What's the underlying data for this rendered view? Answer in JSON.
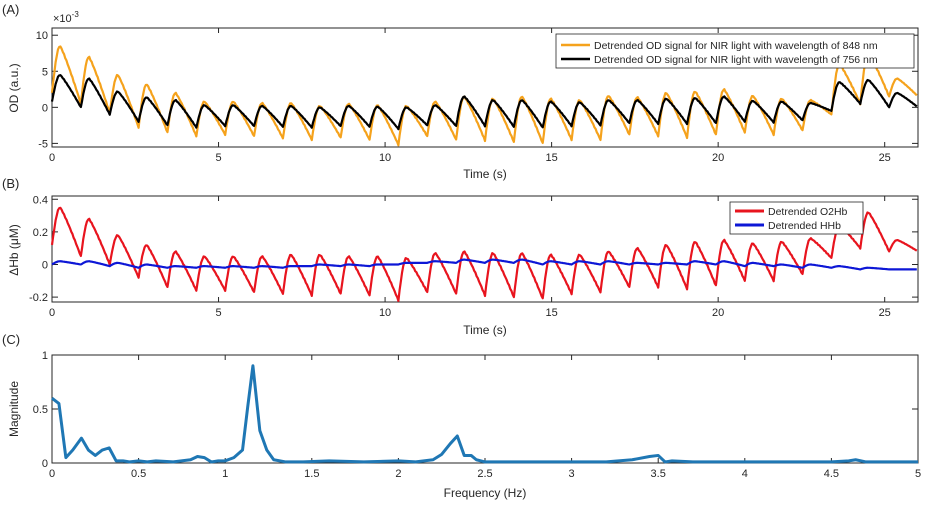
{
  "chart_data": [
    {
      "panel": "(A)",
      "type": "line",
      "xlabel": "Time (s)",
      "ylabel": "OD (a.u.)",
      "exponent_label": "×10",
      "exponent_power": "-3",
      "xlim": [
        0,
        26
      ],
      "ylim": [
        -5.5,
        11
      ],
      "xticks": [
        "0",
        "5",
        "10",
        "15",
        "20",
        "25"
      ],
      "yticks": [
        "-5",
        "0",
        "5",
        "10"
      ],
      "grid": false,
      "legend_position": "top-right",
      "series": [
        {
          "name": "Detrended OD signal for NIR light with wavelength of 848 nm",
          "color": "#f5a21c",
          "baseline": 2.0,
          "amplitude": 6.5,
          "peaks": [
            8.5,
            7.0,
            4.5,
            3.2,
            2.0,
            0.8,
            0.8,
            0.6,
            0.6,
            0.2,
            0.5,
            0.3,
            0.2,
            0.8,
            1.5,
            1.2,
            1.5,
            1.2,
            1.0,
            1.6,
            1.4,
            2.0,
            2.2,
            2.5,
            1.6,
            1.2,
            1.0,
            6.0,
            7.5,
            4.0
          ],
          "troughs": [
            2.0,
            0.5,
            -0.8,
            -2.8,
            -3.5,
            -4.0,
            -3.8,
            -4.0,
            -4.3,
            -4.5,
            -4.2,
            -4.5,
            -5.2,
            -4.0,
            -4.5,
            -4.6,
            -4.8,
            -5.0,
            -4.5,
            -4.5,
            -3.8,
            -4.0,
            -4.2,
            -3.8,
            -3.5,
            -3.8,
            -3.2,
            -1.0,
            0.5,
            1.5
          ]
        },
        {
          "name": "Detrended OD signal for NIR light with wavelength of 756 nm",
          "color": "#000000",
          "baseline": 1.0,
          "amplitude": 3.0,
          "peaks": [
            4.5,
            4.0,
            2.2,
            1.4,
            1.0,
            0.3,
            0.3,
            0.2,
            0.2,
            0.0,
            0.2,
            0.1,
            0.0,
            0.3,
            1.5,
            1.0,
            1.0,
            0.8,
            0.7,
            1.0,
            1.0,
            1.2,
            1.3,
            1.5,
            0.9,
            0.8,
            0.6,
            3.5,
            3.8,
            2.0
          ],
          "troughs": [
            0.8,
            0.0,
            -1.0,
            -2.0,
            -2.5,
            -2.8,
            -2.6,
            -2.6,
            -2.7,
            -2.8,
            -2.6,
            -2.7,
            -3.0,
            -2.5,
            -2.6,
            -2.6,
            -2.7,
            -2.8,
            -2.6,
            -2.5,
            -2.2,
            -2.3,
            -2.3,
            -2.2,
            -2.0,
            -2.1,
            -1.8,
            -0.5,
            0.5,
            0.0
          ]
        }
      ]
    },
    {
      "panel": "(B)",
      "type": "line",
      "xlabel": "Time (s)",
      "ylabel": "ΔHb (μM)",
      "xlim": [
        0,
        26
      ],
      "ylim": [
        -0.23,
        0.42
      ],
      "xticks": [
        "0",
        "5",
        "10",
        "15",
        "20",
        "25"
      ],
      "yticks": [
        "-0.2",
        "0",
        "0.2",
        "0.4"
      ],
      "grid": false,
      "legend_position": "top-right",
      "series": [
        {
          "name": "Detrended O2Hb",
          "color": "#e8141e",
          "peaks": [
            0.35,
            0.28,
            0.18,
            0.12,
            0.08,
            0.05,
            0.05,
            0.05,
            0.06,
            0.06,
            0.05,
            0.05,
            0.04,
            0.07,
            0.08,
            0.07,
            0.07,
            0.06,
            0.06,
            0.08,
            0.1,
            0.12,
            0.14,
            0.15,
            0.13,
            0.14,
            0.16,
            0.24,
            0.32,
            0.15
          ],
          "troughs": [
            0.12,
            0.05,
            0.0,
            -0.08,
            -0.14,
            -0.16,
            -0.16,
            -0.17,
            -0.18,
            -0.19,
            -0.18,
            -0.19,
            -0.22,
            -0.17,
            -0.18,
            -0.19,
            -0.2,
            -0.21,
            -0.18,
            -0.17,
            -0.14,
            -0.14,
            -0.15,
            -0.13,
            -0.1,
            -0.1,
            -0.06,
            0.04,
            0.1,
            0.08
          ]
        },
        {
          "name": "Detrended HHb",
          "color": "#0d17d6",
          "peaks": [
            0.02,
            0.02,
            0.01,
            0.0,
            -0.01,
            -0.01,
            -0.01,
            -0.01,
            -0.01,
            0.0,
            0.0,
            0.0,
            0.01,
            0.02,
            0.03,
            0.03,
            0.03,
            0.02,
            0.02,
            0.02,
            0.01,
            0.01,
            0.02,
            0.02,
            0.01,
            0.0,
            0.0,
            -0.01,
            -0.02,
            -0.03
          ],
          "troughs": [
            0.0,
            0.0,
            -0.01,
            -0.02,
            -0.02,
            -0.02,
            -0.02,
            -0.02,
            -0.02,
            -0.01,
            -0.01,
            -0.01,
            0.0,
            0.01,
            0.01,
            0.01,
            0.01,
            0.0,
            0.0,
            0.0,
            0.0,
            0.0,
            0.0,
            0.0,
            -0.01,
            -0.01,
            -0.02,
            -0.02,
            -0.03,
            -0.03
          ]
        }
      ]
    },
    {
      "panel": "(C)",
      "type": "line",
      "xlabel": "Frequency (Hz)",
      "ylabel": "Magnitude",
      "xlim": [
        0,
        5
      ],
      "ylim": [
        0,
        1
      ],
      "xticks": [
        "0",
        "0.5",
        "1",
        "1.5",
        "2",
        "2.5",
        "3",
        "3.5",
        "4",
        "4.5",
        "5"
      ],
      "yticks": [
        "0",
        "0.5",
        "1"
      ],
      "grid": false,
      "series": [
        {
          "name": "",
          "color": "#1f77b4",
          "x": [
            0,
            0.04,
            0.08,
            0.12,
            0.17,
            0.21,
            0.25,
            0.29,
            0.33,
            0.37,
            0.41,
            0.45,
            0.5,
            0.55,
            0.6,
            0.7,
            0.8,
            0.84,
            0.88,
            0.92,
            0.96,
            1.0,
            1.05,
            1.1,
            1.13,
            1.16,
            1.2,
            1.24,
            1.28,
            1.35,
            1.45,
            1.6,
            1.8,
            2.0,
            2.1,
            2.2,
            2.25,
            2.3,
            2.34,
            2.38,
            2.42,
            2.45,
            2.5,
            2.6,
            2.8,
            3.0,
            3.2,
            3.35,
            3.45,
            3.5,
            3.54,
            3.58,
            3.7,
            3.9,
            4.1,
            4.3,
            4.5,
            4.6,
            4.64,
            4.7,
            4.8,
            5.0
          ],
          "y": [
            0.6,
            0.55,
            0.05,
            0.12,
            0.23,
            0.12,
            0.07,
            0.12,
            0.14,
            0.02,
            0.02,
            0.01,
            0.02,
            0.01,
            0.02,
            0.01,
            0.03,
            0.06,
            0.05,
            0.01,
            0.02,
            0.02,
            0.05,
            0.12,
            0.52,
            0.9,
            0.3,
            0.12,
            0.03,
            0.01,
            0.01,
            0.02,
            0.01,
            0.02,
            0.01,
            0.03,
            0.08,
            0.18,
            0.25,
            0.07,
            0.07,
            0.03,
            0.01,
            0.01,
            0.01,
            0.01,
            0.01,
            0.03,
            0.06,
            0.07,
            0.01,
            0.02,
            0.01,
            0.01,
            0.01,
            0.01,
            0.01,
            0.02,
            0.03,
            0.01,
            0.01,
            0.01
          ]
        }
      ]
    }
  ]
}
